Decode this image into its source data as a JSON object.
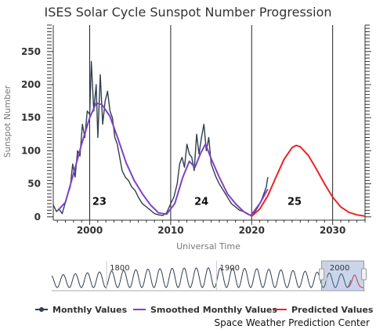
{
  "chart_data": {
    "type": "line",
    "title": "ISES Solar Cycle Sunspot Number Progression",
    "xlabel": "Universal Time",
    "ylabel": "Sunspot Number",
    "xlim": [
      1995.5,
      2034.0
    ],
    "ylim": [
      -5,
      290
    ],
    "x_ticks": [
      "2000",
      "2010",
      "2020",
      "2030"
    ],
    "y_ticks": [
      "0",
      "50",
      "100",
      "150",
      "200",
      "250"
    ],
    "grid": "vertical at decades",
    "cycle_labels": [
      {
        "text": "23",
        "x": 2001.2,
        "y": 18
      },
      {
        "text": "24",
        "x": 2013.8,
        "y": 18
      },
      {
        "text": "25",
        "x": 2025.3,
        "y": 18
      }
    ],
    "series": [
      {
        "name": "Monthly Values",
        "color": "#2f3f4f",
        "x": [
          1995.5,
          1995.9,
          1996.2,
          1996.6,
          1997.0,
          1997.3,
          1997.6,
          1997.9,
          1998.2,
          1998.5,
          1998.8,
          1999.1,
          1999.4,
          1999.7,
          2000.0,
          2000.2,
          2000.5,
          2000.8,
          2001.0,
          2001.3,
          2001.6,
          2001.9,
          2002.2,
          2002.5,
          2002.8,
          2003.1,
          2003.4,
          2003.7,
          2004.0,
          2004.4,
          2004.8,
          2005.2,
          2005.6,
          2006.0,
          2006.5,
          2007.0,
          2007.5,
          2008.0,
          2008.5,
          2009.0,
          2009.5,
          2010.0,
          2010.4,
          2010.8,
          2011.1,
          2011.4,
          2011.7,
          2012.0,
          2012.3,
          2012.6,
          2012.9,
          2013.2,
          2013.5,
          2013.8,
          2014.1,
          2014.4,
          2014.7,
          2015.0,
          2015.3,
          2015.6,
          2016.0,
          2016.5,
          2017.0,
          2017.5,
          2018.0,
          2018.5,
          2019.0,
          2019.5,
          2020.0,
          2020.4,
          2020.8,
          2021.2,
          2021.5,
          2021.8,
          2022.0
        ],
        "values": [
          18,
          8,
          12,
          5,
          22,
          35,
          45,
          80,
          60,
          100,
          92,
          140,
          120,
          160,
          155,
          235,
          160,
          200,
          120,
          215,
          140,
          175,
          190,
          160,
          150,
          120,
          110,
          90,
          70,
          60,
          55,
          45,
          40,
          30,
          20,
          15,
          10,
          5,
          3,
          2,
          6,
          20,
          30,
          50,
          80,
          90,
          75,
          110,
          95,
          90,
          70,
          125,
          95,
          120,
          140,
          100,
          120,
          80,
          70,
          60,
          50,
          40,
          30,
          20,
          15,
          10,
          8,
          4,
          2,
          8,
          15,
          25,
          35,
          45,
          60
        ]
      },
      {
        "name": "Smoothed Monthly Values",
        "color": "#7b44c8",
        "x": [
          1996.0,
          1997.0,
          1998.0,
          1999.0,
          2000.0,
          2000.8,
          2001.5,
          2002.5,
          2003.5,
          2004.5,
          2005.5,
          2006.5,
          2007.5,
          2008.5,
          2009.5,
          2010.5,
          2011.5,
          2012.3,
          2013.0,
          2013.7,
          2014.3,
          2015.0,
          2016.0,
          2017.0,
          2018.0,
          2019.0,
          2019.9,
          2021.0,
          2022.0
        ],
        "values": [
          9,
          22,
          65,
          110,
          150,
          172,
          170,
          152,
          118,
          82,
          55,
          35,
          18,
          6,
          4,
          20,
          60,
          84,
          75,
          96,
          110,
          88,
          60,
          35,
          20,
          8,
          2,
          20,
          42
        ]
      },
      {
        "name": "Predicted Values",
        "color": "#e22",
        "x": [
          2020.0,
          2021.0,
          2022.0,
          2023.0,
          2024.0,
          2025.0,
          2025.5,
          2026.0,
          2027.0,
          2028.0,
          2029.0,
          2030.0,
          2031.0,
          2032.0,
          2033.0,
          2034.0
        ],
        "values": [
          1,
          12,
          32,
          60,
          87,
          105,
          108,
          106,
          93,
          72,
          50,
          30,
          15,
          7,
          3,
          1
        ]
      }
    ],
    "navigator": {
      "labels": [
        "1800",
        "1900",
        "2000"
      ],
      "selection": [
        1995.5,
        2034.0
      ],
      "range": [
        1750,
        2035
      ]
    }
  },
  "legend": [
    {
      "name": "Monthly Values",
      "color": "#2f3f4f"
    },
    {
      "name": "Smoothed Monthly Values",
      "color": "#7b44c8"
    },
    {
      "name": "Predicted Values",
      "color": "#e22"
    }
  ],
  "credits": "Space Weather Prediction Center"
}
